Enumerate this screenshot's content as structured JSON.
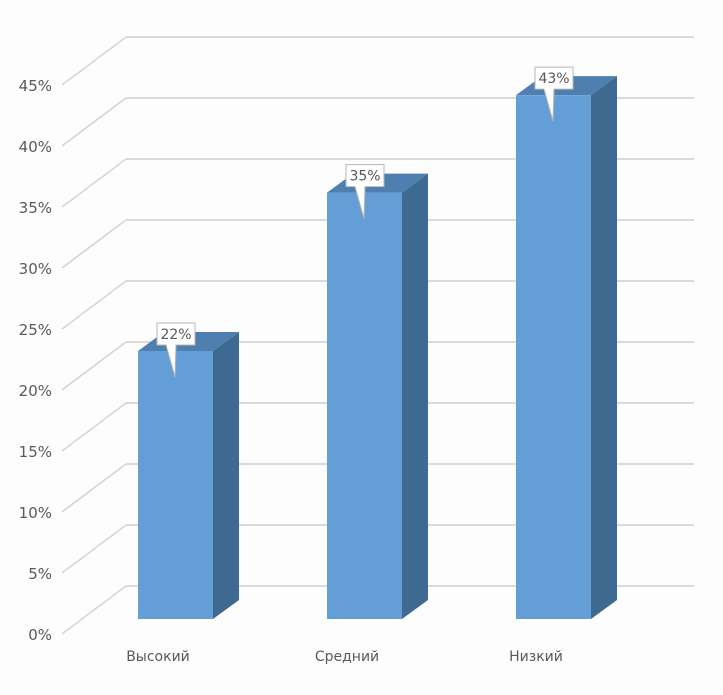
{
  "chart_data": {
    "type": "bar",
    "title": "",
    "xlabel": "",
    "ylabel": "",
    "categories": [
      "Высокий",
      "Средний",
      "Низкий"
    ],
    "values": [
      22,
      35,
      43
    ],
    "value_labels": [
      "22%",
      "35%",
      "43%"
    ],
    "ylim": [
      0,
      45
    ],
    "ytick_values": [
      0,
      5,
      10,
      15,
      20,
      25,
      30,
      35,
      40,
      45
    ],
    "ytick_labels": [
      "0%",
      "5%",
      "10%",
      "15%",
      "20%",
      "25%",
      "30%",
      "35%",
      "40%",
      "45%"
    ],
    "grid": true,
    "legend": "none",
    "style": "3d-column",
    "colors": {
      "bar_front": "#639fd6",
      "bar_top": "#4f7fae",
      "bar_side": "#3e6990",
      "gridline": "#cfcfcf",
      "text": "#595959"
    }
  }
}
